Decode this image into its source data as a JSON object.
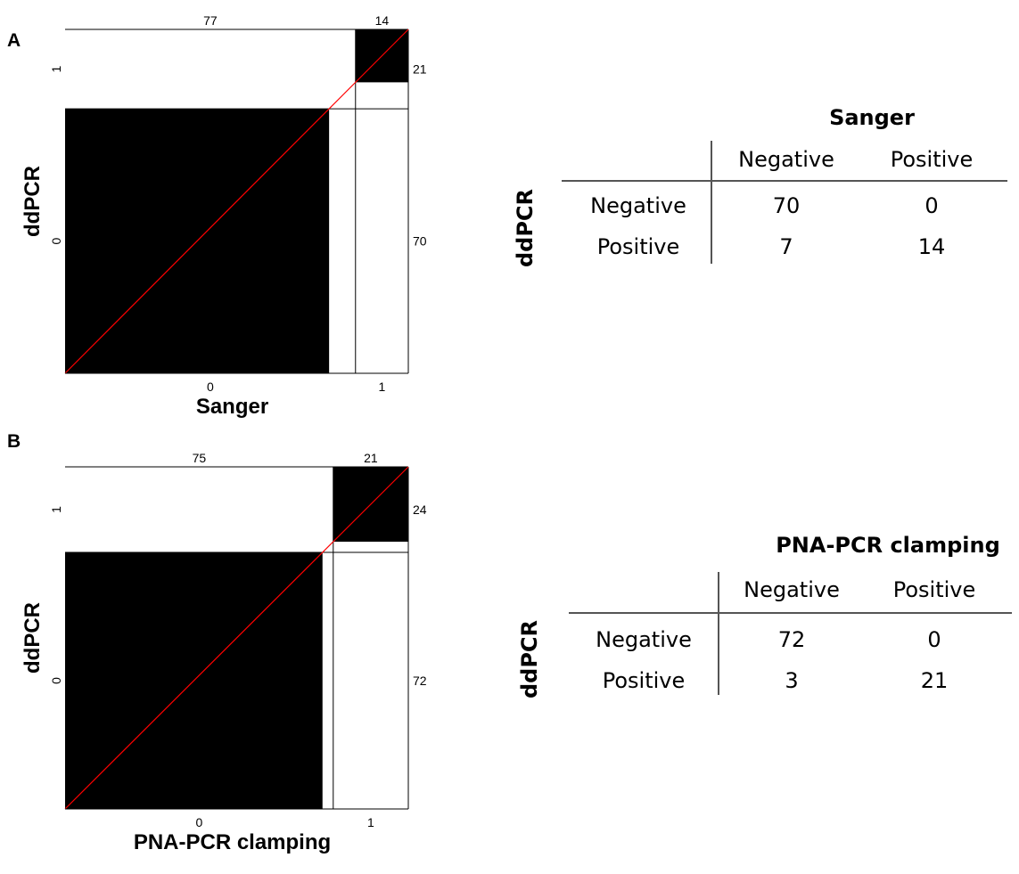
{
  "panels": [
    {
      "letter": "A",
      "chart": {
        "type": "agreement_plot",
        "xlabel": "Sanger",
        "ylabel": "ddPCR",
        "x_categories": [
          "0",
          "1"
        ],
        "y_categories": [
          "0",
          "1"
        ],
        "col_totals": [
          77,
          14
        ],
        "row_totals": [
          70,
          21
        ],
        "col_total_labels": [
          "77",
          "14"
        ],
        "row_total_labels": [
          "70",
          "21"
        ],
        "agreement_counts": [
          70,
          14
        ],
        "reference_line_color": "#ff0000"
      },
      "table": {
        "col_header": "Sanger",
        "row_header": "ddPCR",
        "columns": [
          "Negative",
          "Positive"
        ],
        "rows": [
          {
            "label": "Negative",
            "values": [
              "70",
              "0"
            ]
          },
          {
            "label": "Positive",
            "values": [
              "7",
              "14"
            ]
          }
        ]
      }
    },
    {
      "letter": "B",
      "chart": {
        "type": "agreement_plot",
        "xlabel": "PNA-PCR clamping",
        "ylabel": "ddPCR",
        "x_categories": [
          "0",
          "1"
        ],
        "y_categories": [
          "0",
          "1"
        ],
        "col_totals": [
          75,
          21
        ],
        "row_totals": [
          72,
          24
        ],
        "col_total_labels": [
          "75",
          "21"
        ],
        "row_total_labels": [
          "72",
          "24"
        ],
        "agreement_counts": [
          72,
          21
        ],
        "reference_line_color": "#ff0000"
      },
      "table": {
        "col_header": "PNA-PCR clamping",
        "row_header": "ddPCR",
        "columns": [
          "Negative",
          "Positive"
        ],
        "rows": [
          {
            "label": "Negative",
            "values": [
              "72",
              "0"
            ]
          },
          {
            "label": "Positive",
            "values": [
              "3",
              "21"
            ]
          }
        ]
      }
    }
  ],
  "chart_data": [
    {
      "type": "table",
      "title": "",
      "xlabel": "Sanger",
      "ylabel": "ddPCR",
      "x_categories": [
        "0",
        "1"
      ],
      "y_categories": [
        "0",
        "1"
      ],
      "col_totals": [
        77,
        14
      ],
      "row_totals": [
        70,
        21
      ],
      "agreement": [
        70,
        14
      ],
      "contingency": {
        "columns": [
          "Negative",
          "Positive"
        ],
        "rows": [
          "Negative",
          "Positive"
        ],
        "values": [
          [
            70,
            0
          ],
          [
            7,
            14
          ]
        ]
      }
    },
    {
      "type": "table",
      "title": "",
      "xlabel": "PNA-PCR clamping",
      "ylabel": "ddPCR",
      "x_categories": [
        "0",
        "1"
      ],
      "y_categories": [
        "0",
        "1"
      ],
      "col_totals": [
        75,
        21
      ],
      "row_totals": [
        72,
        24
      ],
      "agreement": [
        72,
        21
      ],
      "contingency": {
        "columns": [
          "Negative",
          "Positive"
        ],
        "rows": [
          "Negative",
          "Positive"
        ],
        "values": [
          [
            72,
            0
          ],
          [
            3,
            21
          ]
        ]
      }
    }
  ]
}
